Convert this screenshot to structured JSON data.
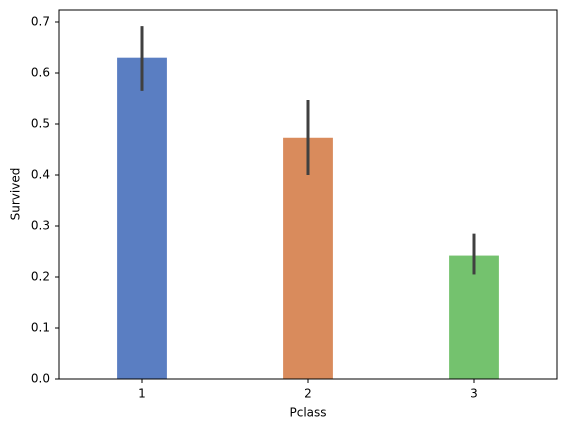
{
  "chart_data": {
    "type": "bar",
    "x_label": "Pclass",
    "y_label": "Survived",
    "categories": [
      "1",
      "2",
      "3"
    ],
    "values": [
      0.63,
      0.473,
      0.242
    ],
    "ci_low": [
      0.565,
      0.4,
      0.205
    ],
    "ci_high": [
      0.692,
      0.547,
      0.285
    ],
    "colors": [
      "#5a7ec2",
      "#d98b5c",
      "#74c26e"
    ],
    "error_color": "#404040",
    "ylim": [
      0,
      0.7235
    ],
    "yticks": [
      {
        "value": 0,
        "label": "0.0"
      },
      0.1,
      0.2,
      0.3,
      0.4,
      0.5,
      0.6,
      0.7
    ],
    "grid": false
  }
}
